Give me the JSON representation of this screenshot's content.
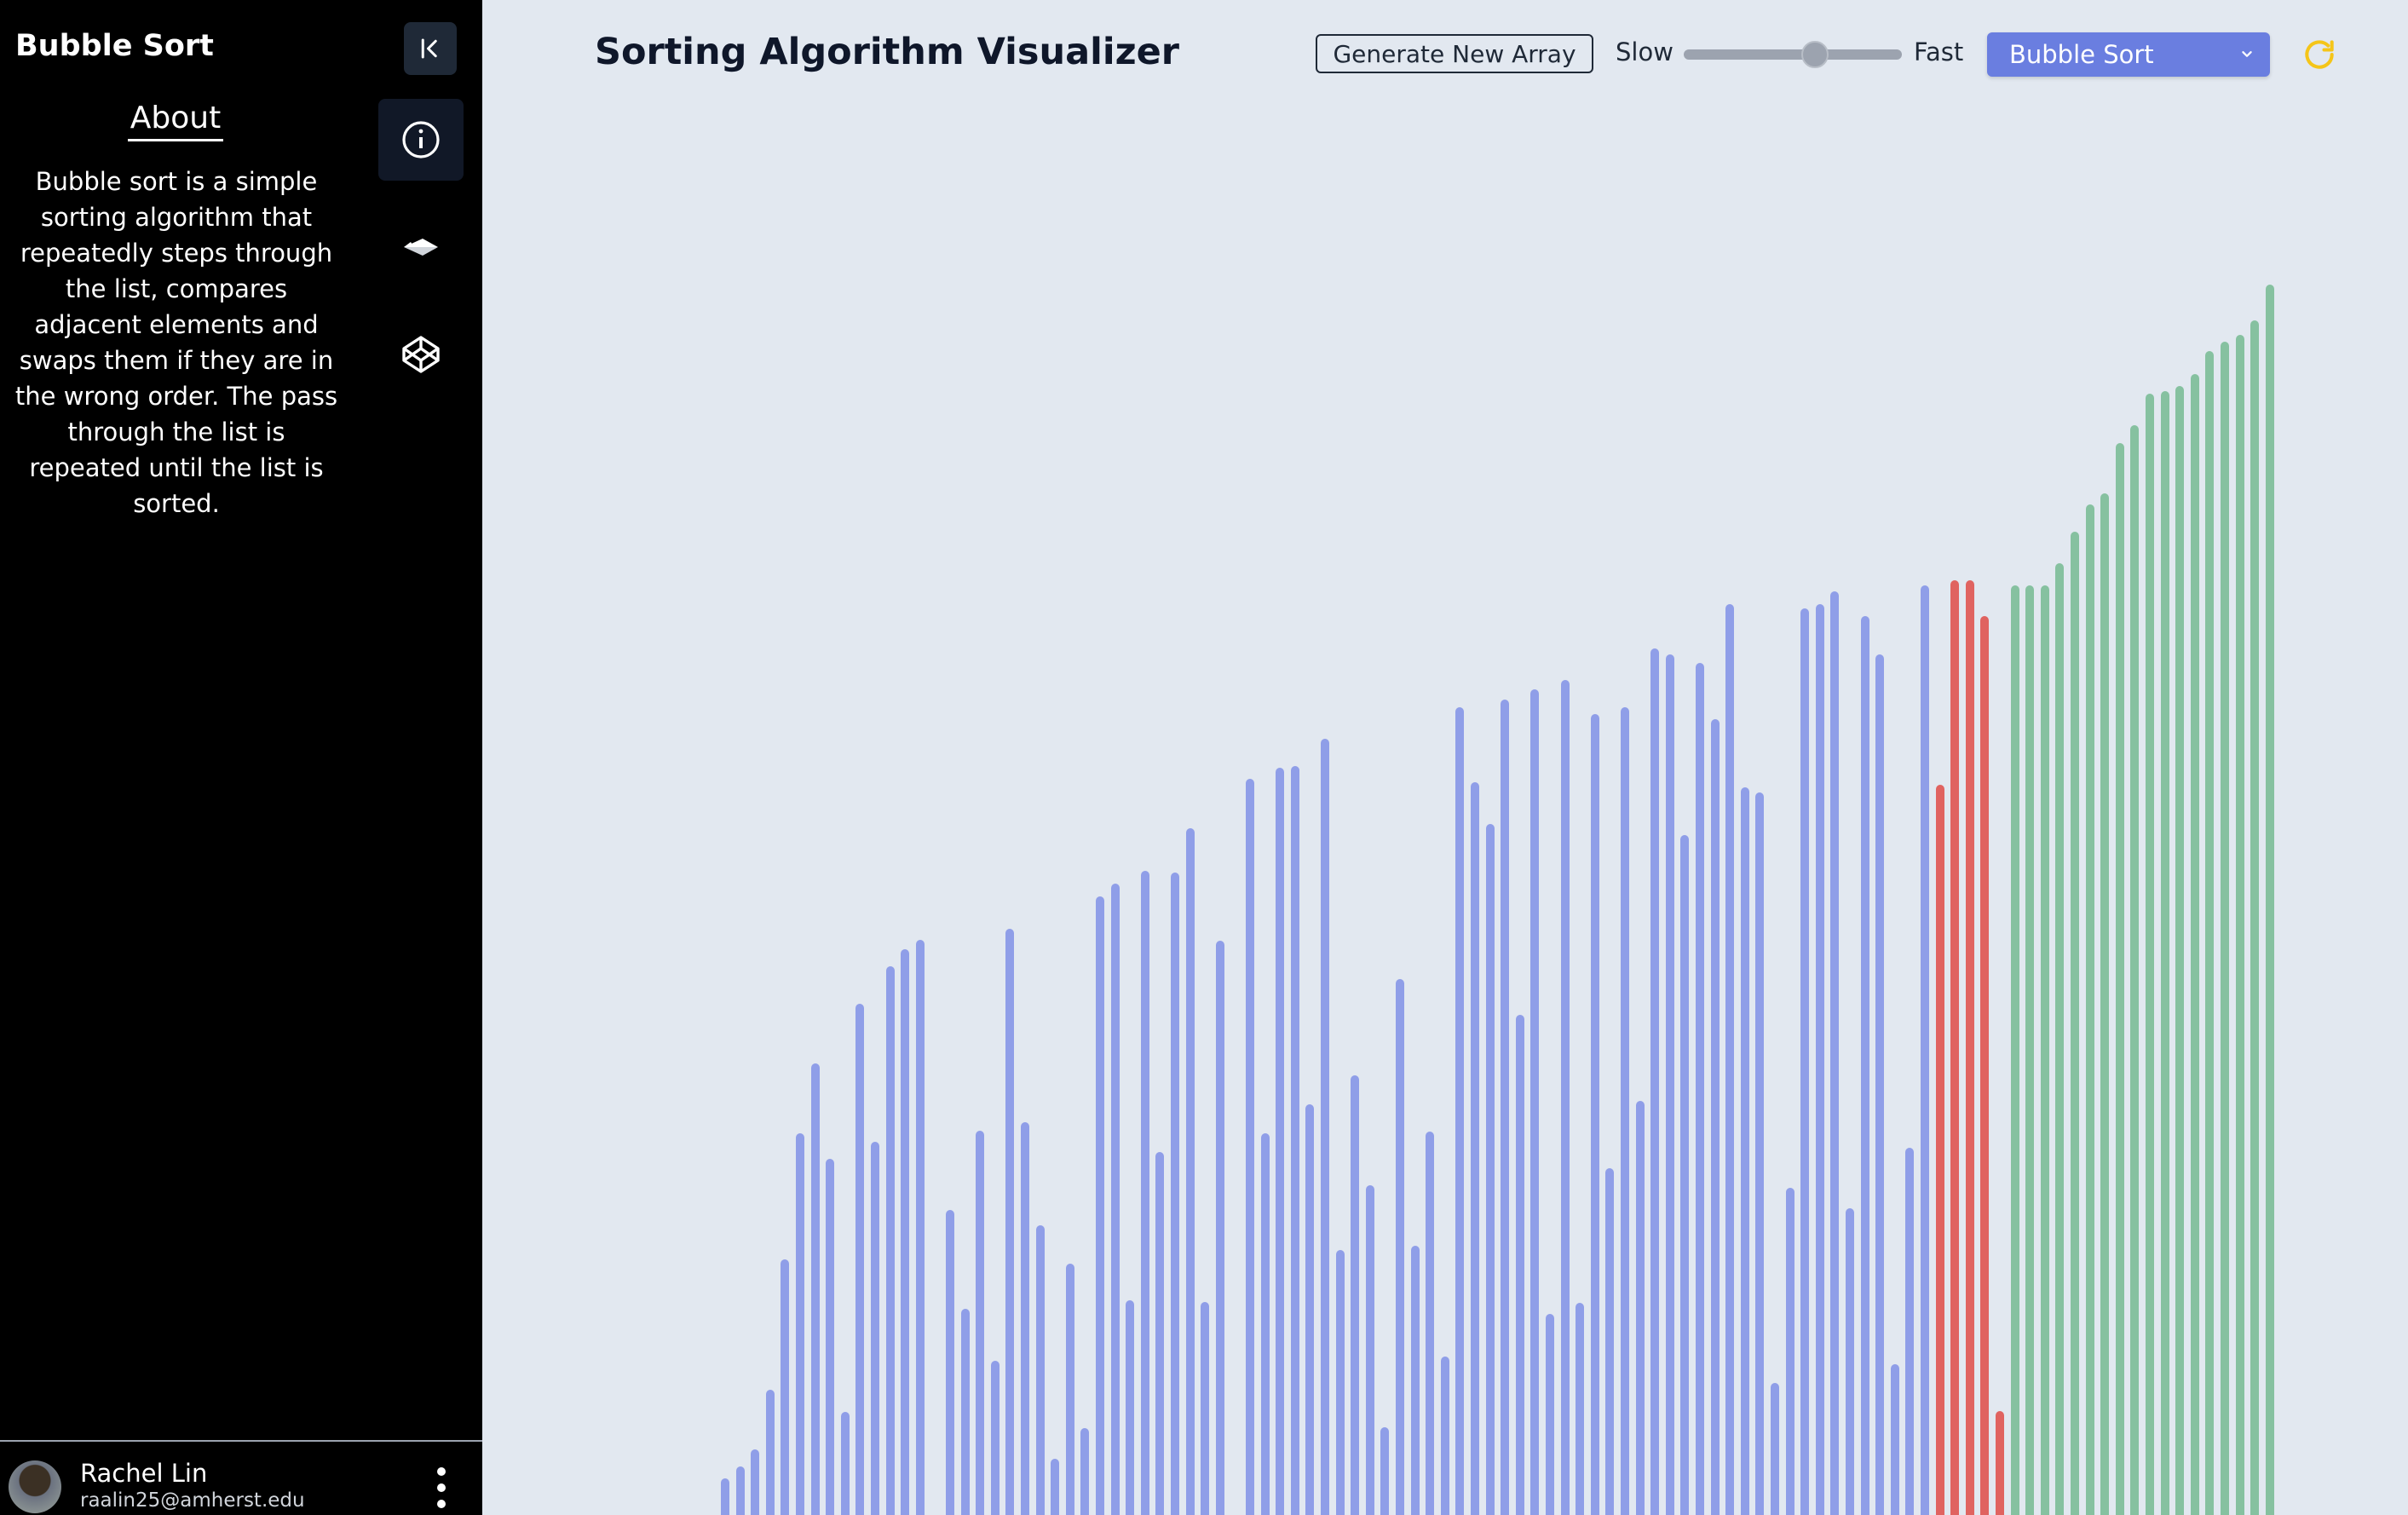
{
  "sidebar": {
    "title": "Bubble Sort",
    "about_heading": "About",
    "about_text": "Bubble sort is a simple sorting algorithm that repeatedly steps through the list, compares adjacent elements and swaps them if they are in the wrong order. The pass through the list is repeated until the list is sorted.",
    "nav_icons": [
      "info-icon",
      "paper-plane-icon",
      "codepen-icon"
    ],
    "collapse_icon": "collapse-left-icon"
  },
  "user": {
    "name": "Rachel Lin",
    "email": "raalin25@amherst.edu"
  },
  "header": {
    "title": "Sorting Algorithm Visualizer",
    "generate_label": "Generate New Array",
    "slow_label": "Slow",
    "fast_label": "Fast",
    "speed_value": 0.6,
    "algorithm_selected": "Bubble Sort",
    "refresh_icon": "refresh-icon"
  },
  "colors": {
    "default": "#8f9ee8",
    "compare": "#e06360",
    "sorted": "#86c1a0",
    "accent": "#6a7ee0",
    "refresh": "#f5c518"
  },
  "chart_data": {
    "type": "bar",
    "max_value": 1000,
    "values": [
      43,
      57,
      77,
      147,
      300,
      448,
      530,
      418,
      121,
      600,
      438,
      644,
      664,
      675,
      0,
      358,
      242,
      451,
      181,
      688,
      461,
      340,
      66,
      295,
      102,
      726,
      741,
      252,
      756,
      426,
      754,
      806,
      250,
      674,
      0,
      864,
      448,
      877,
      879,
      482,
      911,
      311,
      516,
      387,
      103,
      629,
      316,
      450,
      186,
      948,
      860,
      811,
      957,
      587,
      969,
      236,
      980,
      249,
      940,
      407,
      948,
      486,
      1017,
      1010,
      798,
      1000,
      934,
      1069,
      854,
      848,
      155,
      384,
      1064,
      1069,
      1084,
      360,
      1055,
      1010,
      177,
      431,
      1091,
      857,
      1097,
      1097,
      1055,
      122,
      1091,
      1091,
      1091,
      1117,
      1154,
      1186,
      1199,
      1258,
      1279,
      1316,
      1319,
      1325,
      1339,
      1366,
      1377,
      1385,
      1402,
      1444
    ],
    "states": [
      "d",
      "d",
      "d",
      "d",
      "d",
      "d",
      "d",
      "d",
      "d",
      "d",
      "d",
      "d",
      "d",
      "d",
      "d",
      "d",
      "d",
      "d",
      "d",
      "d",
      "d",
      "d",
      "d",
      "d",
      "d",
      "d",
      "d",
      "d",
      "d",
      "d",
      "d",
      "d",
      "d",
      "d",
      "d",
      "d",
      "d",
      "d",
      "d",
      "d",
      "d",
      "d",
      "d",
      "d",
      "d",
      "d",
      "d",
      "d",
      "d",
      "d",
      "d",
      "d",
      "d",
      "d",
      "d",
      "d",
      "d",
      "d",
      "d",
      "d",
      "d",
      "d",
      "d",
      "d",
      "d",
      "d",
      "d",
      "d",
      "d",
      "d",
      "d",
      "d",
      "d",
      "d",
      "d",
      "d",
      "d",
      "d",
      "d",
      "d",
      "d",
      "c",
      "c",
      "c",
      "c",
      "c",
      "s",
      "s",
      "s",
      "s",
      "s",
      "s",
      "s",
      "s",
      "s",
      "s",
      "s",
      "s",
      "s",
      "s",
      "s",
      "s",
      "s",
      "s"
    ]
  }
}
